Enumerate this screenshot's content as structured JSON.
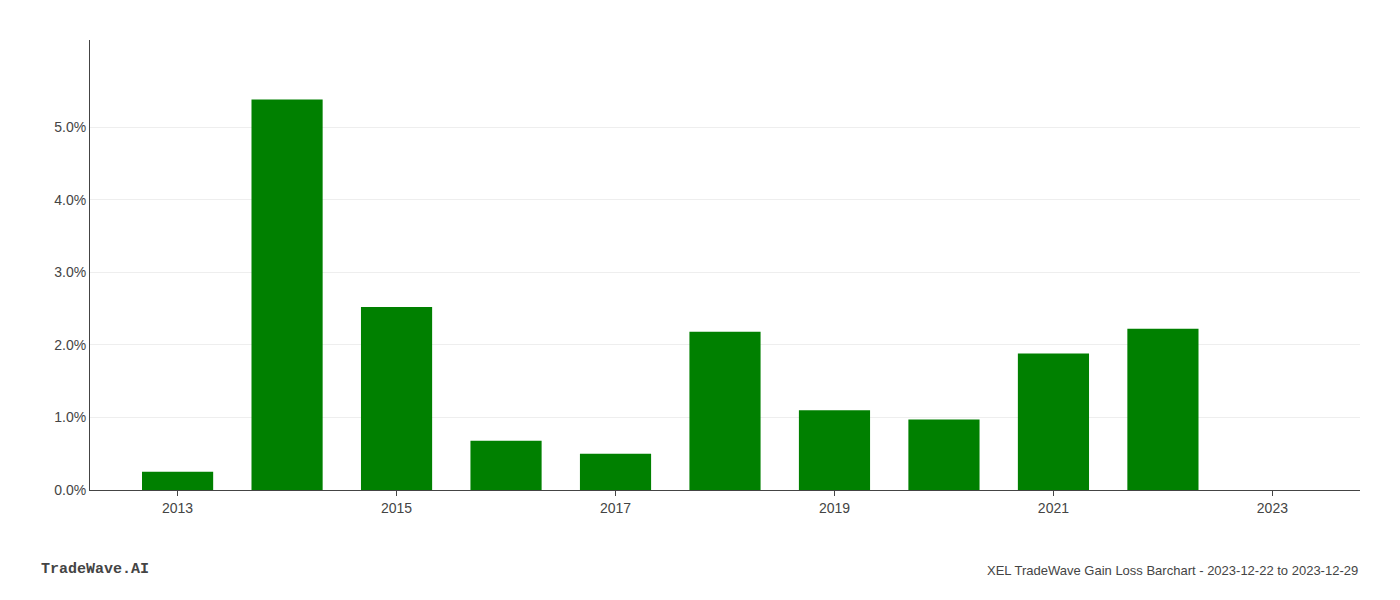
{
  "chart_data": {
    "type": "bar",
    "x": [
      2013,
      2014,
      2015,
      2016,
      2017,
      2018,
      2019,
      2020,
      2021,
      2022,
      2023
    ],
    "values": [
      0.0025,
      0.0538,
      0.0252,
      0.0068,
      0.005,
      0.0218,
      0.011,
      0.0097,
      0.0188,
      0.0222,
      0.0
    ],
    "color": "#008000",
    "xlim": [
      2012.2,
      2023.8
    ],
    "xticks": [
      2013,
      2015,
      2017,
      2019,
      2021,
      2023
    ],
    "ylim": [
      0,
      0.062
    ],
    "yticks": [
      {
        "value": 0.0,
        "label": "0.0%"
      },
      {
        "value": 0.01,
        "label": "1.0%"
      },
      {
        "value": 0.02,
        "label": "2.0%"
      },
      {
        "value": 0.03,
        "label": "3.0%"
      },
      {
        "value": 0.04,
        "label": "4.0%"
      },
      {
        "value": 0.05,
        "label": "5.0%"
      }
    ],
    "grid": true,
    "annotations": [
      "TradeWave.AI",
      "XEL TradeWave Gain Loss Barchart - 2023-12-22 to 2023-12-29"
    ]
  }
}
